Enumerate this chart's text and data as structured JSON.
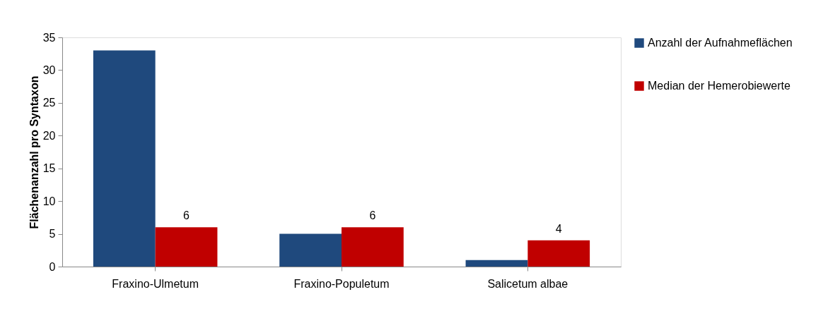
{
  "chart_data": {
    "type": "bar",
    "ylabel": "Flächenanzahl pro Syntaxon",
    "categories": [
      "Fraxino-Ulmetum",
      "Fraxino-Populetum",
      "Salicetum albae"
    ],
    "series": [
      {
        "name": "Anzahl der Aufnahmeflächen",
        "color": "#1f497d",
        "values": [
          33,
          5,
          1
        ]
      },
      {
        "name": "Median der Hemerobiewerte",
        "color": "#c00000",
        "values": [
          6,
          6,
          4
        ],
        "value_labels": [
          "6",
          "6",
          "4"
        ]
      }
    ],
    "ylim": [
      0,
      35
    ],
    "yticks": [
      0,
      5,
      10,
      15,
      20,
      25,
      30,
      35
    ],
    "grid": false,
    "legend": "right"
  }
}
